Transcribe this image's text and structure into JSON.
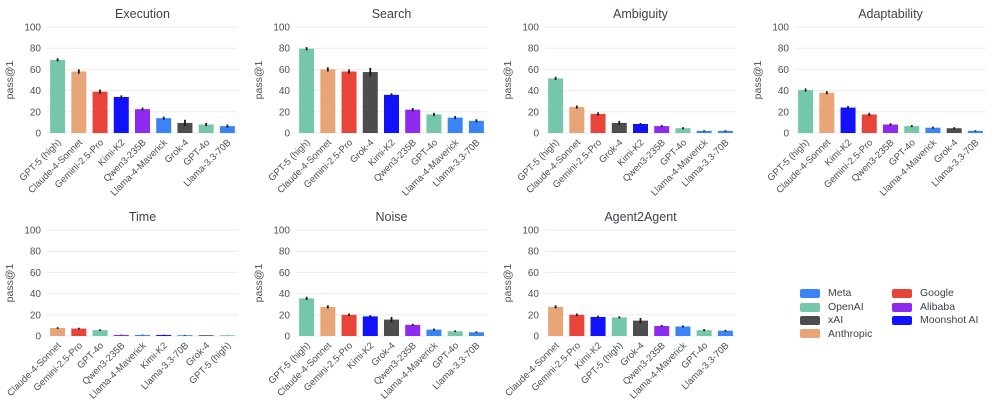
{
  "figure": {
    "background": "#ffffff",
    "title_color": "#3d424a",
    "tick_color": "#4a4f57",
    "gridline_color": "#e9ebef",
    "errorbar_color": "#1a1a1a"
  },
  "axis": {
    "ylabel": "pass@1",
    "yticks": [
      0,
      20,
      40,
      60,
      80,
      100
    ],
    "ylim": [
      0,
      100
    ]
  },
  "org_colors": {
    "Meta": "#3b84f6",
    "OpenAI": "#74c7a8",
    "xAI": "#4d4d4d",
    "Anthropic": "#e7a578",
    "Google": "#e9443a",
    "Alibaba": "#8f2af0",
    "Moonshot AI": "#1212fa"
  },
  "model_orgs": {
    "GPT-5 (high)": "OpenAI",
    "GPT-4o": "OpenAI",
    "Claude-4-Sonnet": "Anthropic",
    "Gemini-2.5-Pro": "Google",
    "Kimi-K2": "Moonshot AI",
    "Qwen3-235B": "Alibaba",
    "Llama-4-Maverick": "Meta",
    "Llama-3.3-70B": "Meta",
    "Grok-4": "xAI"
  },
  "chart_data": [
    {
      "type": "bar",
      "title": "Execution",
      "ylabel": "pass@1",
      "ylim": [
        0,
        100
      ],
      "grid": true,
      "categories": [
        "GPT-5 (high)",
        "Claude-4-Sonnet",
        "Gemini-2.5-Pro",
        "Kimi-K2",
        "Qwen3-235B",
        "Llama-4-Maverick",
        "Grok-4",
        "GPT-4o",
        "Llama-3.3-70B"
      ],
      "values": [
        69,
        58,
        39,
        34,
        22.5,
        14,
        9.5,
        8,
        6.5
      ],
      "errors": [
        1.5,
        2,
        2,
        1.5,
        1.5,
        1.5,
        3,
        1.5,
        1.5
      ]
    },
    {
      "type": "bar",
      "title": "Search",
      "ylabel": "pass@1",
      "ylim": [
        0,
        100
      ],
      "grid": true,
      "categories": [
        "GPT-5 (high)",
        "Claude-4-Sonnet",
        "Gemini-2.5-Pro",
        "Grok-4",
        "Kimi-K2",
        "Qwen3-235B",
        "GPT-4o",
        "Llama-4-Maverick",
        "Llama-3.3-70B"
      ],
      "values": [
        79.5,
        60,
        58,
        57.5,
        36,
        22,
        17.5,
        14.5,
        11.5
      ],
      "errors": [
        1.5,
        2,
        2,
        4,
        1.5,
        1.5,
        1.5,
        1.5,
        1.5
      ]
    },
    {
      "type": "bar",
      "title": "Ambiguity",
      "ylabel": "pass@1",
      "ylim": [
        0,
        100
      ],
      "grid": true,
      "categories": [
        "GPT-5 (high)",
        "Claude-4-Sonnet",
        "Gemini-2.5-Pro",
        "Grok-4",
        "Kimi-K2",
        "Qwen3-235B",
        "GPT-4o",
        "Llama-4-Maverick",
        "Llama-3.3-70B"
      ],
      "values": [
        51.5,
        24.5,
        18,
        9.5,
        8.5,
        6.5,
        4.5,
        2,
        2
      ],
      "errors": [
        1.5,
        1.5,
        1.5,
        2,
        1,
        1,
        1,
        0.6,
        0.6
      ]
    },
    {
      "type": "bar",
      "title": "Adaptability",
      "ylabel": "pass@1",
      "ylim": [
        0,
        100
      ],
      "grid": true,
      "categories": [
        "GPT-5 (high)",
        "Claude-4-Sonnet",
        "Kimi-K2",
        "Gemini-2.5-Pro",
        "Qwen3-235B",
        "GPT-4o",
        "Llama-4-Maverick",
        "Grok-4",
        "Llama-3.3-70B"
      ],
      "values": [
        40.5,
        38,
        24,
        17.5,
        8,
        6.5,
        5,
        4.5,
        2
      ],
      "errors": [
        1.5,
        1.5,
        1.5,
        1.5,
        1.2,
        1,
        1,
        1,
        0.6
      ]
    },
    {
      "type": "bar",
      "title": "Time",
      "ylabel": "pass@1",
      "ylim": [
        0,
        100
      ],
      "grid": true,
      "categories": [
        "Claude-4-Sonnet",
        "Gemini-2.5-Pro",
        "GPT-4o",
        "Qwen3-235B",
        "Llama-4-Maverick",
        "Kimi-K2",
        "Llama-3.3-70B",
        "Grok-4",
        "GPT-5 (high)"
      ],
      "values": [
        7.5,
        7,
        5.5,
        1,
        1,
        1,
        0.7,
        0.2,
        0.1
      ],
      "errors": [
        0.8,
        0.8,
        0.8,
        0.3,
        0.3,
        0.3,
        0.3,
        0.1,
        0.1
      ]
    },
    {
      "type": "bar",
      "title": "Noise",
      "ylabel": "pass@1",
      "ylim": [
        0,
        100
      ],
      "grid": true,
      "categories": [
        "GPT-5 (high)",
        "Claude-4-Sonnet",
        "Gemini-2.5-Pro",
        "Kimi-K2",
        "Grok-4",
        "Qwen3-235B",
        "Llama-4-Maverick",
        "GPT-4o",
        "Llama-3.3-70B"
      ],
      "values": [
        35.5,
        27.5,
        20,
        18.5,
        15.5,
        10.5,
        6,
        4.5,
        3.5
      ],
      "errors": [
        1.5,
        1.5,
        1.2,
        1.2,
        2.5,
        1,
        1,
        0.8,
        0.8
      ]
    },
    {
      "type": "bar",
      "title": "Agent2Agent",
      "ylabel": "pass@1",
      "ylim": [
        0,
        100
      ],
      "grid": true,
      "categories": [
        "Claude-4-Sonnet",
        "Gemini-2.5-Pro",
        "Kimi-K2",
        "GPT-5 (high)",
        "Grok-4",
        "Qwen3-235B",
        "Llama-4-Maverick",
        "GPT-4o",
        "Llama-3.3-70B"
      ],
      "values": [
        27.5,
        20,
        18,
        17.5,
        14.5,
        9.5,
        9,
        5.5,
        5
      ],
      "errors": [
        1.5,
        1.2,
        1.2,
        1,
        2.5,
        1,
        1,
        1,
        0.8
      ]
    }
  ],
  "legend": {
    "position": "bottom-right",
    "items": [
      {
        "label": "Meta",
        "color": "#3b84f6"
      },
      {
        "label": "OpenAI",
        "color": "#74c7a8"
      },
      {
        "label": "xAI",
        "color": "#4d4d4d"
      },
      {
        "label": "Anthropic",
        "color": "#e7a578"
      },
      {
        "label": "Google",
        "color": "#e9443a"
      },
      {
        "label": "Alibaba",
        "color": "#8f2af0"
      },
      {
        "label": "Moonshot AI",
        "color": "#1212fa"
      }
    ]
  }
}
